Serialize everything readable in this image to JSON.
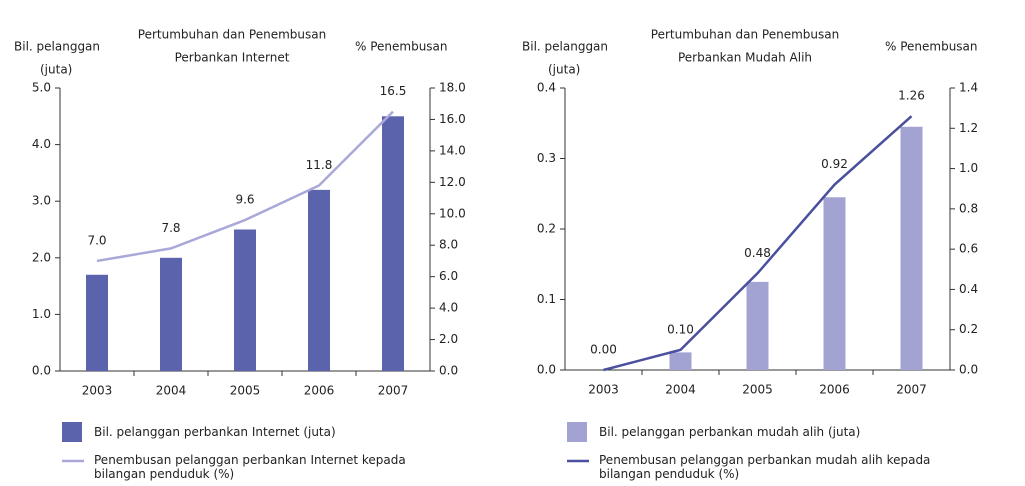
{
  "chart_data": [
    {
      "type": "bar-line",
      "title": [
        "Pertumbuhan dan Penembusan",
        "Perbankan Internet"
      ],
      "ylabel": [
        "Bil. pelanggan",
        "(juta)"
      ],
      "y2label": "% Penembusan",
      "categories": [
        "2003",
        "2004",
        "2005",
        "2006",
        "2007"
      ],
      "series": [
        {
          "name": "Bil. pelanggan perbankan Internet (juta)",
          "type": "bar",
          "color": "#5b63ad",
          "values": [
            1.7,
            2.0,
            2.5,
            3.2,
            4.5
          ]
        },
        {
          "name": "Penembusan pelanggan perbankan Internet kepada bilangan penduduk (%)",
          "type": "line",
          "axis": "y2",
          "color": "#a9a8d8",
          "values": [
            7.0,
            7.8,
            9.6,
            11.8,
            16.5
          ],
          "value_labels": [
            "7.0",
            "7.8",
            "9.6",
            "11.8",
            "16.5"
          ]
        }
      ],
      "ylim": [
        0,
        5
      ],
      "yticks": [
        {
          "value": 0,
          "label": "0.0"
        },
        {
          "value": 1,
          "label": "1.0"
        },
        {
          "value": 2,
          "label": "2.0"
        },
        {
          "value": 3,
          "label": "3.0"
        },
        {
          "value": 4,
          "label": "4.0"
        },
        {
          "value": 5,
          "label": "5.0"
        }
      ],
      "y2lim": [
        0,
        18
      ],
      "y2ticks": [
        {
          "value": 0,
          "label": "0.0"
        },
        {
          "value": 2,
          "label": "2.0"
        },
        {
          "value": 4,
          "label": "4.0"
        },
        {
          "value": 6,
          "label": "6.0"
        },
        {
          "value": 8,
          "label": "8.0"
        },
        {
          "value": 10,
          "label": "10.0"
        },
        {
          "value": 12,
          "label": "12.0"
        },
        {
          "value": 14,
          "label": "14.0"
        },
        {
          "value": 16,
          "label": "16.0"
        },
        {
          "value": 18,
          "label": "18.0"
        }
      ]
    },
    {
      "type": "bar-line",
      "title": [
        "Pertumbuhan dan Penembusan",
        "Perbankan Mudah Alih"
      ],
      "ylabel": [
        "Bil. pelanggan",
        "(juta)"
      ],
      "y2label": "% Penembusan",
      "categories": [
        "2003",
        "2004",
        "2005",
        "2006",
        "2007"
      ],
      "series": [
        {
          "name": "Bil. pelanggan perbankan mudah alih (juta)",
          "type": "bar",
          "color": "#a3a3d3",
          "values": [
            0,
            0.025,
            0.125,
            0.245,
            0.345
          ]
        },
        {
          "name": "Penembusan pelanggan perbankan mudah alih kepada bilangan penduduk (%)",
          "type": "line",
          "axis": "y2",
          "color": "#4a509e",
          "values": [
            0.0,
            0.1,
            0.48,
            0.92,
            1.26
          ],
          "value_labels": [
            "0.00",
            "0.10",
            "0.48",
            "0.92",
            "1.26"
          ]
        }
      ],
      "ylim": [
        0,
        0.4
      ],
      "yticks": [
        {
          "value": 0,
          "label": "0.0"
        },
        0.1,
        0.2,
        0.3,
        0.4
      ],
      "y2lim": [
        0,
        1.4
      ],
      "y2ticks": [
        {
          "value": 0,
          "label": "0.0"
        },
        0.2,
        0.4,
        0.6,
        0.8,
        {
          "value": 1,
          "label": "1.0"
        },
        1.2,
        1.4
      ]
    }
  ]
}
